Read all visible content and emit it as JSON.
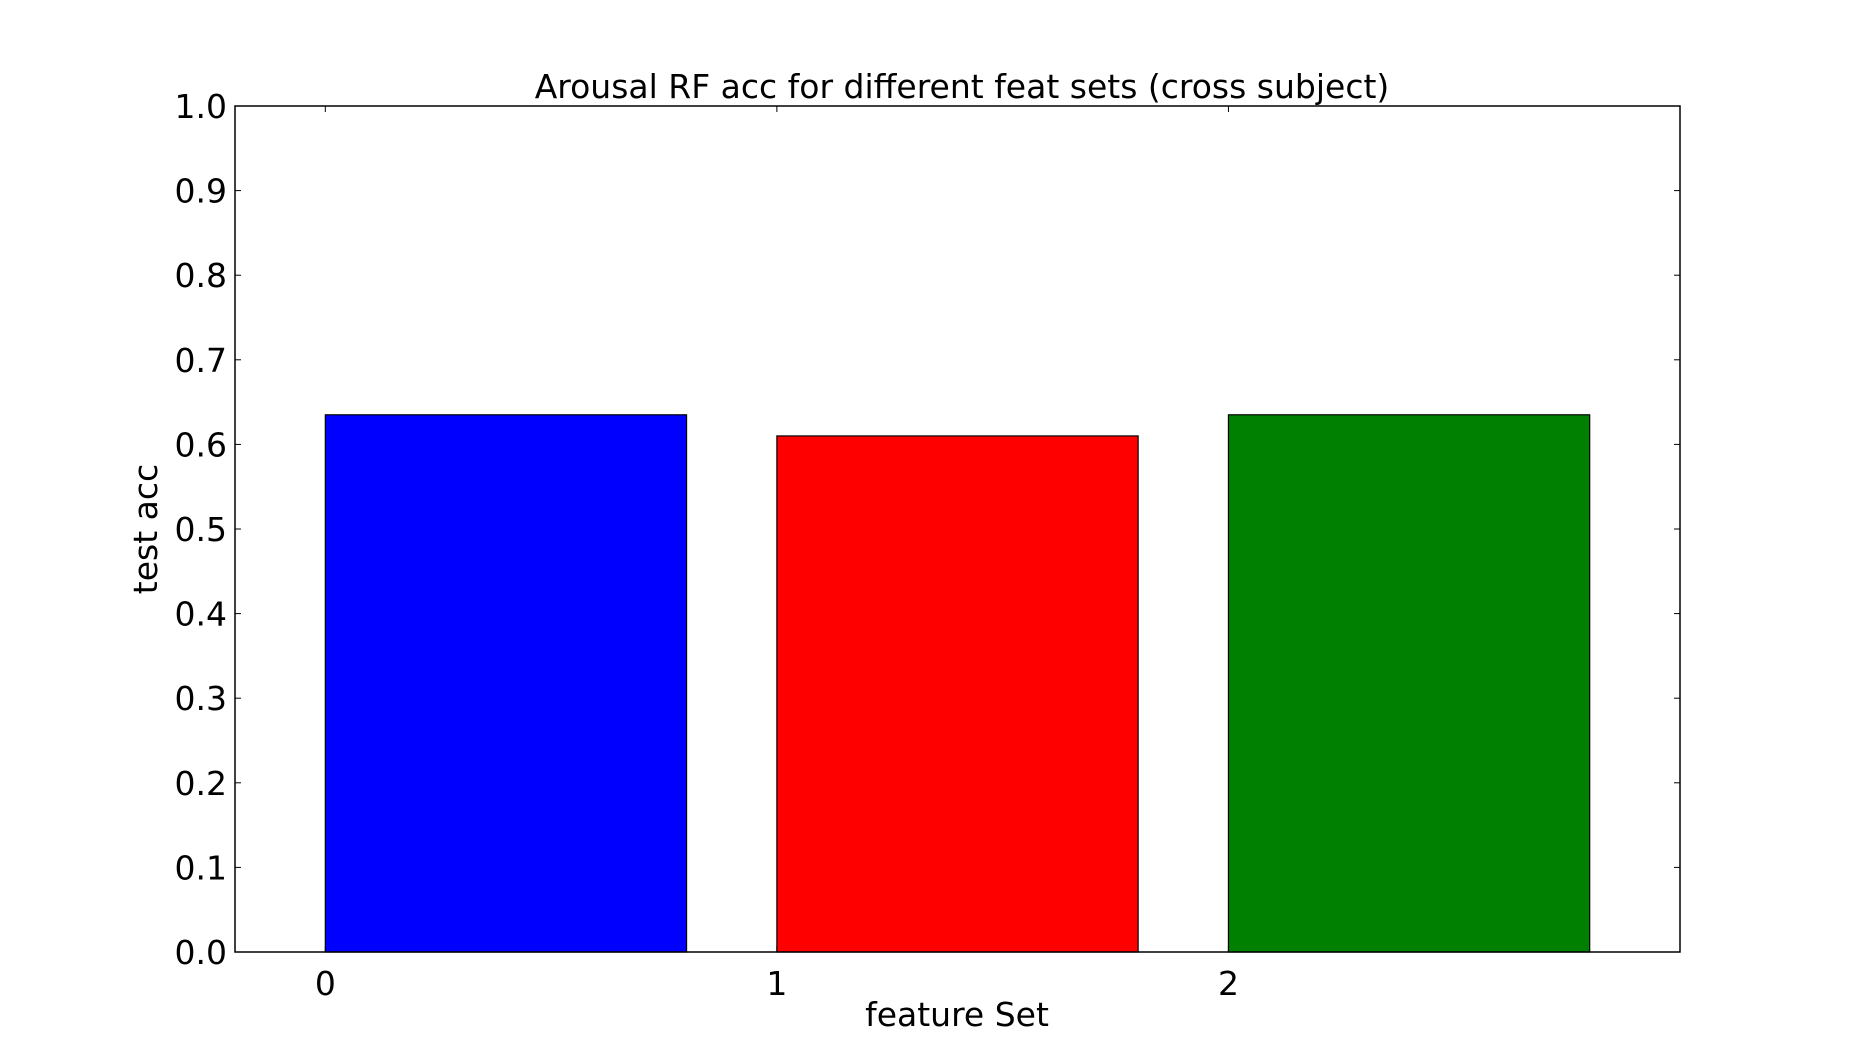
{
  "chart_data": {
    "type": "bar",
    "title": "Arousal RF acc for different feat sets (cross subject)",
    "xlabel": "feature Set",
    "ylabel": "test acc",
    "x": [
      0,
      1,
      2
    ],
    "categories": [
      "0",
      "1",
      "2"
    ],
    "values": [
      0.635,
      0.61,
      0.635
    ],
    "bar_colors": [
      "#0000ff",
      "#ff0000",
      "#008000"
    ],
    "xlim": [
      -0.2,
      3.0
    ],
    "ylim": [
      0.0,
      1.0
    ],
    "yticks": [
      "0.0",
      "0.1",
      "0.2",
      "0.3",
      "0.4",
      "0.5",
      "0.6",
      "0.7",
      "0.8",
      "0.9",
      "1.0"
    ],
    "grid": false,
    "legend": false
  }
}
